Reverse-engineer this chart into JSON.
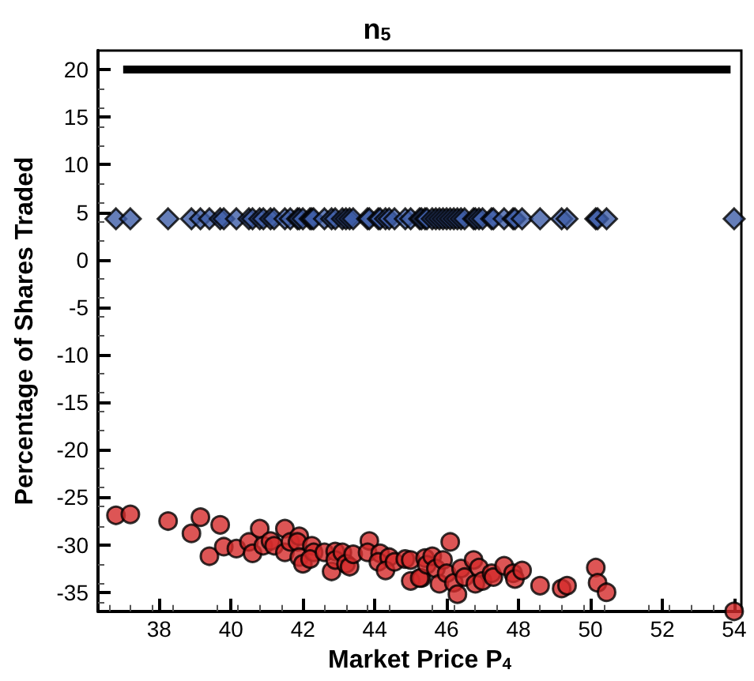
{
  "chart_data": {
    "type": "scatter",
    "title": "n$_{5}$",
    "xlabel": "Market Price P$_{4}$",
    "ylabel": "Percentage of Shares Traded",
    "xlim": [
      36.3,
      54.2
    ],
    "xticks": [
      38,
      40,
      42,
      44,
      46,
      48,
      50,
      52,
      54
    ],
    "ylim": [
      -37,
      22
    ],
    "yticks": [
      -35,
      -30,
      -25,
      -20,
      -15,
      -10,
      -5,
      0,
      5,
      10,
      15,
      20
    ],
    "grid": false,
    "series": [
      {
        "type": "line",
        "color": "#000000",
        "marker": "none",
        "x": [
          37.0,
          53.9
        ],
        "values": [
          20,
          20
        ]
      },
      {
        "color": "#3f5ea8",
        "marker": "diamond",
        "x": [
          36.8,
          37.2,
          38.25,
          38.9,
          39.15,
          39.4,
          39.7,
          39.8,
          40.15,
          40.5,
          40.6,
          40.8,
          40.9,
          41.1,
          41.2,
          41.5,
          41.65,
          41.85,
          41.9,
          42.0,
          42.2,
          42.25,
          42.3,
          42.6,
          42.8,
          42.9,
          43.1,
          43.2,
          43.3,
          43.4,
          43.8,
          43.85,
          44.1,
          44.15,
          44.3,
          44.4,
          44.55,
          44.85,
          45.0,
          45.25,
          45.3,
          45.4,
          45.45,
          45.6,
          45.7,
          45.8,
          45.9,
          46.0,
          46.1,
          46.2,
          46.3,
          46.4,
          46.5,
          46.75,
          46.8,
          46.9,
          47.0,
          47.25,
          47.3,
          47.6,
          47.85,
          47.9,
          48.1,
          48.6,
          49.2,
          49.35,
          50.15,
          50.2,
          50.45,
          54.0
        ],
        "values": [
          4.3,
          4.3,
          4.3,
          4.3,
          4.3,
          4.3,
          4.3,
          4.3,
          4.3,
          4.3,
          4.3,
          4.3,
          4.3,
          4.3,
          4.3,
          4.3,
          4.3,
          4.3,
          4.3,
          4.3,
          4.3,
          4.3,
          4.3,
          4.3,
          4.3,
          4.3,
          4.3,
          4.3,
          4.3,
          4.3,
          4.3,
          4.3,
          4.3,
          4.3,
          4.3,
          4.3,
          4.3,
          4.3,
          4.3,
          4.3,
          4.3,
          4.3,
          4.3,
          4.3,
          4.3,
          4.3,
          4.3,
          4.3,
          4.3,
          4.3,
          4.3,
          4.3,
          4.3,
          4.3,
          4.3,
          4.3,
          4.3,
          4.3,
          4.3,
          4.3,
          4.3,
          4.3,
          4.3,
          4.3,
          4.3,
          4.3,
          4.3,
          4.3,
          4.3,
          4.3
        ]
      },
      {
        "color": "#d42a2a",
        "marker": "circle",
        "x": [
          36.8,
          37.2,
          38.25,
          39.15,
          38.9,
          39.7,
          39.4,
          39.8,
          40.15,
          40.5,
          40.6,
          40.8,
          40.9,
          41.1,
          41.2,
          41.5,
          41.5,
          41.65,
          41.9,
          41.85,
          41.9,
          42.0,
          42.25,
          42.3,
          42.2,
          42.6,
          42.9,
          42.8,
          42.9,
          43.1,
          43.2,
          43.3,
          43.4,
          43.85,
          43.8,
          44.15,
          44.1,
          44.4,
          44.3,
          44.55,
          44.85,
          45.0,
          45.0,
          45.3,
          45.25,
          45.4,
          45.45,
          45.6,
          45.7,
          45.8,
          45.9,
          46.1,
          46.0,
          46.2,
          46.3,
          46.4,
          46.5,
          46.75,
          46.8,
          46.9,
          47.0,
          47.25,
          47.3,
          47.6,
          47.85,
          47.9,
          48.1,
          48.6,
          49.2,
          49.35,
          50.15,
          50.2,
          50.45,
          54.0
        ],
        "values": [
          -26.9,
          -26.8,
          -27.5,
          -27.1,
          -28.8,
          -27.9,
          -31.2,
          -30.2,
          -30.4,
          -29.7,
          -30.9,
          -28.3,
          -30.1,
          -29.6,
          -30.1,
          -28.3,
          -30.8,
          -29.7,
          -29.1,
          -29.7,
          -31.3,
          -32.0,
          -30.1,
          -30.8,
          -31.5,
          -30.8,
          -30.7,
          -32.8,
          -31.6,
          -30.8,
          -32.0,
          -32.3,
          -31.0,
          -29.6,
          -30.8,
          -30.9,
          -31.8,
          -31.3,
          -32.7,
          -31.8,
          -31.5,
          -33.8,
          -31.6,
          -33.5,
          -33.5,
          -31.4,
          -32.1,
          -31.2,
          -32.5,
          -34.1,
          -31.6,
          -29.7,
          -33.0,
          -34.0,
          -35.2,
          -32.5,
          -33.4,
          -31.6,
          -34.1,
          -32.4,
          -33.8,
          -33.0,
          -33.4,
          -32.2,
          -33.0,
          -33.6,
          -32.7,
          -34.3,
          -34.6,
          -34.3,
          -32.4,
          -34.0,
          -35.0,
          -37.0
        ]
      }
    ]
  }
}
